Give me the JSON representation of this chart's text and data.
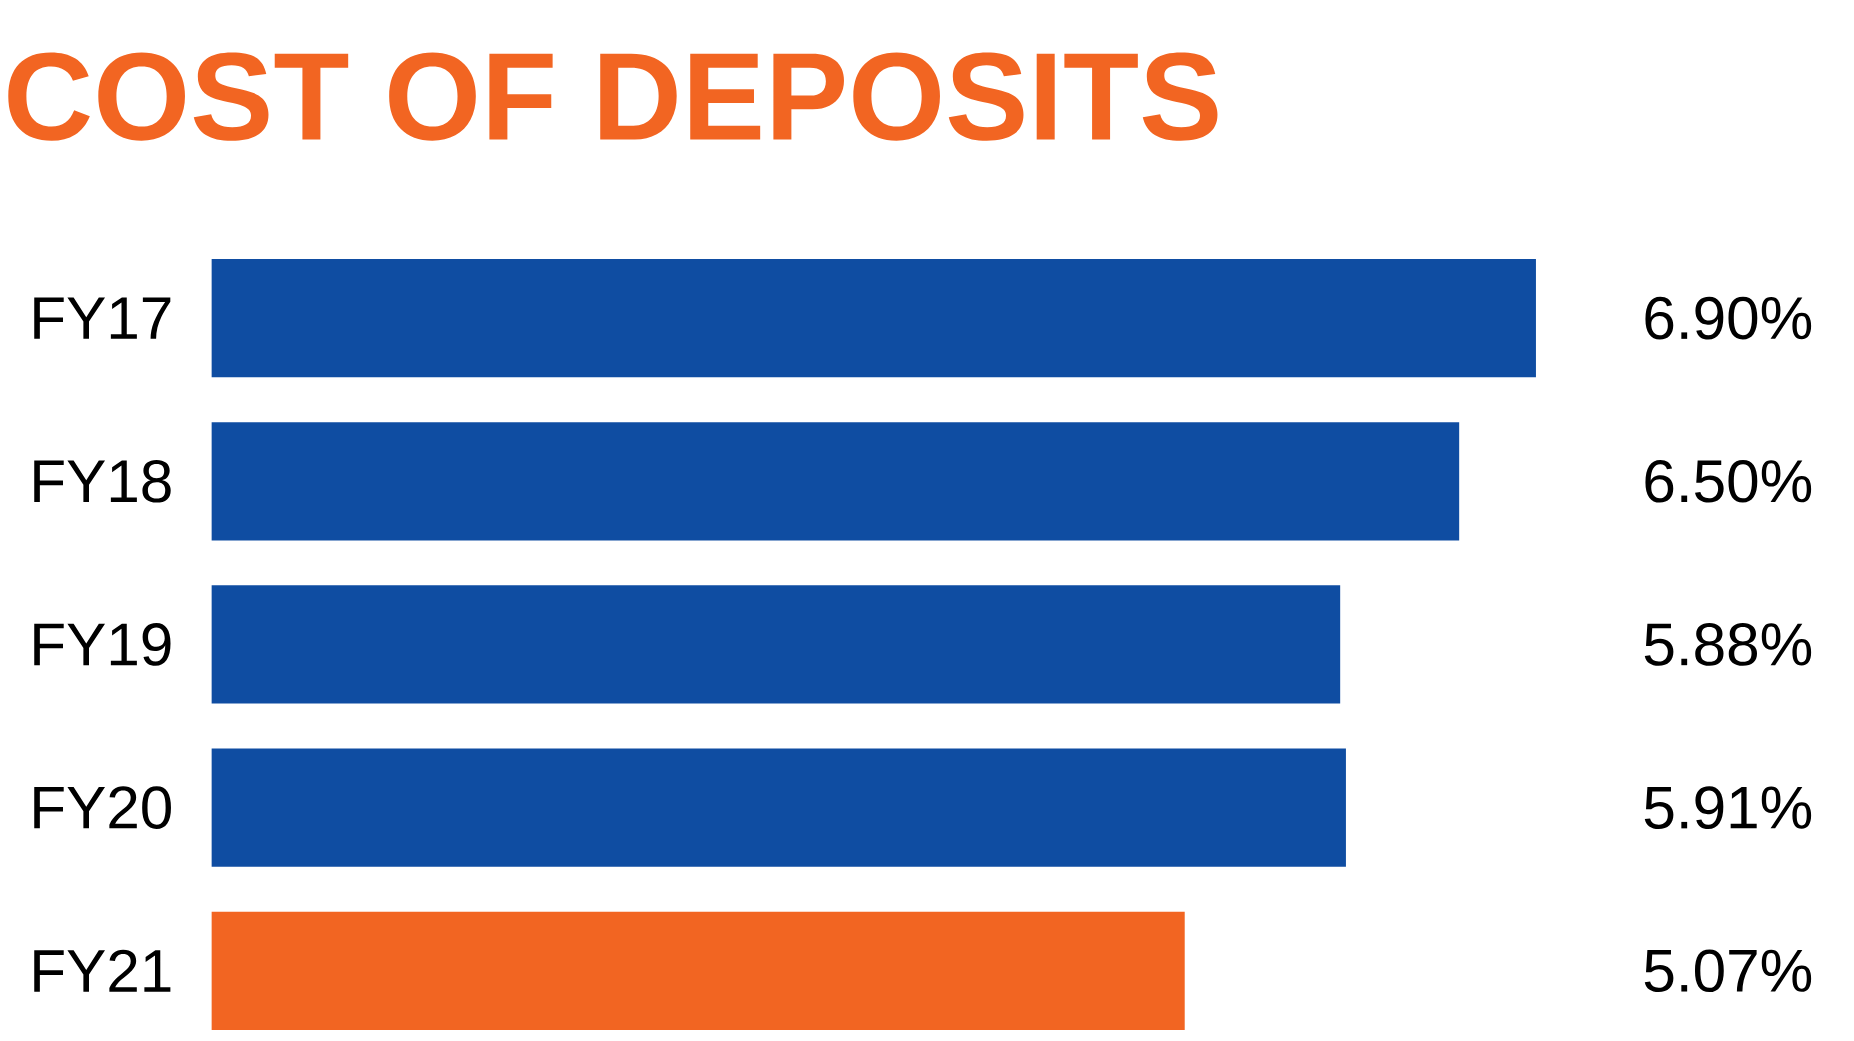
{
  "chart_data": {
    "type": "bar",
    "orientation": "horizontal",
    "title": "COST OF DEPOSITS",
    "categories": [
      "FY17",
      "FY18",
      "FY19",
      "FY20",
      "FY21"
    ],
    "values": [
      6.9,
      6.5,
      5.88,
      5.91,
      5.07
    ],
    "colors": [
      "#0f4da2",
      "#0f4da2",
      "#0f4da2",
      "#0f4da2",
      "#f26522"
    ],
    "value_labels": [
      "6.90%",
      "6.50%",
      "5.88%",
      "5.91%",
      "5.07%"
    ]
  }
}
